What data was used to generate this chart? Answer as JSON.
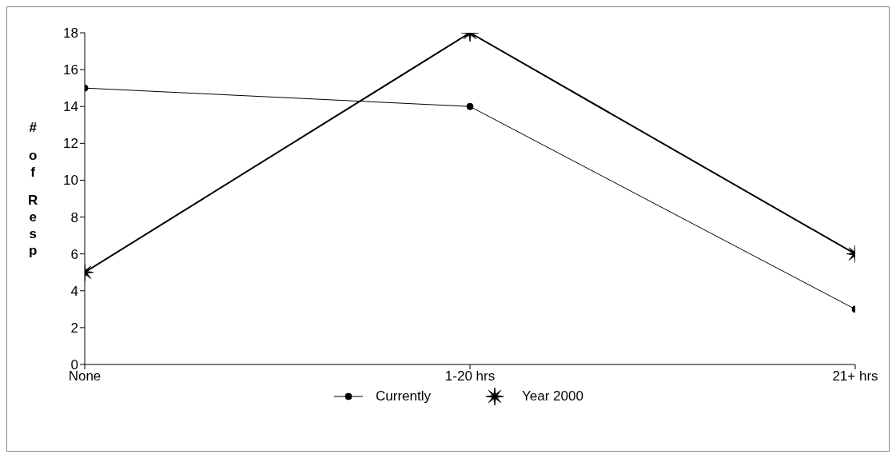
{
  "chart_data": {
    "type": "line",
    "ylabel": "# of Resp",
    "categories": [
      "None",
      "1-20 hrs",
      "21+ hrs"
    ],
    "series": [
      {
        "name": "Currently",
        "color": "#000000",
        "values": [
          15,
          14,
          3
        ],
        "marker": "circle"
      },
      {
        "name": "Year 2000",
        "color": "#000000",
        "values": [
          5,
          18,
          6
        ],
        "marker": "star"
      }
    ],
    "ylim": [
      0,
      18
    ],
    "yticks": [
      0,
      2,
      4,
      6,
      8,
      10,
      12,
      14,
      16,
      18
    ],
    "grid": false,
    "legend": "bottom",
    "line_style": "solid"
  }
}
